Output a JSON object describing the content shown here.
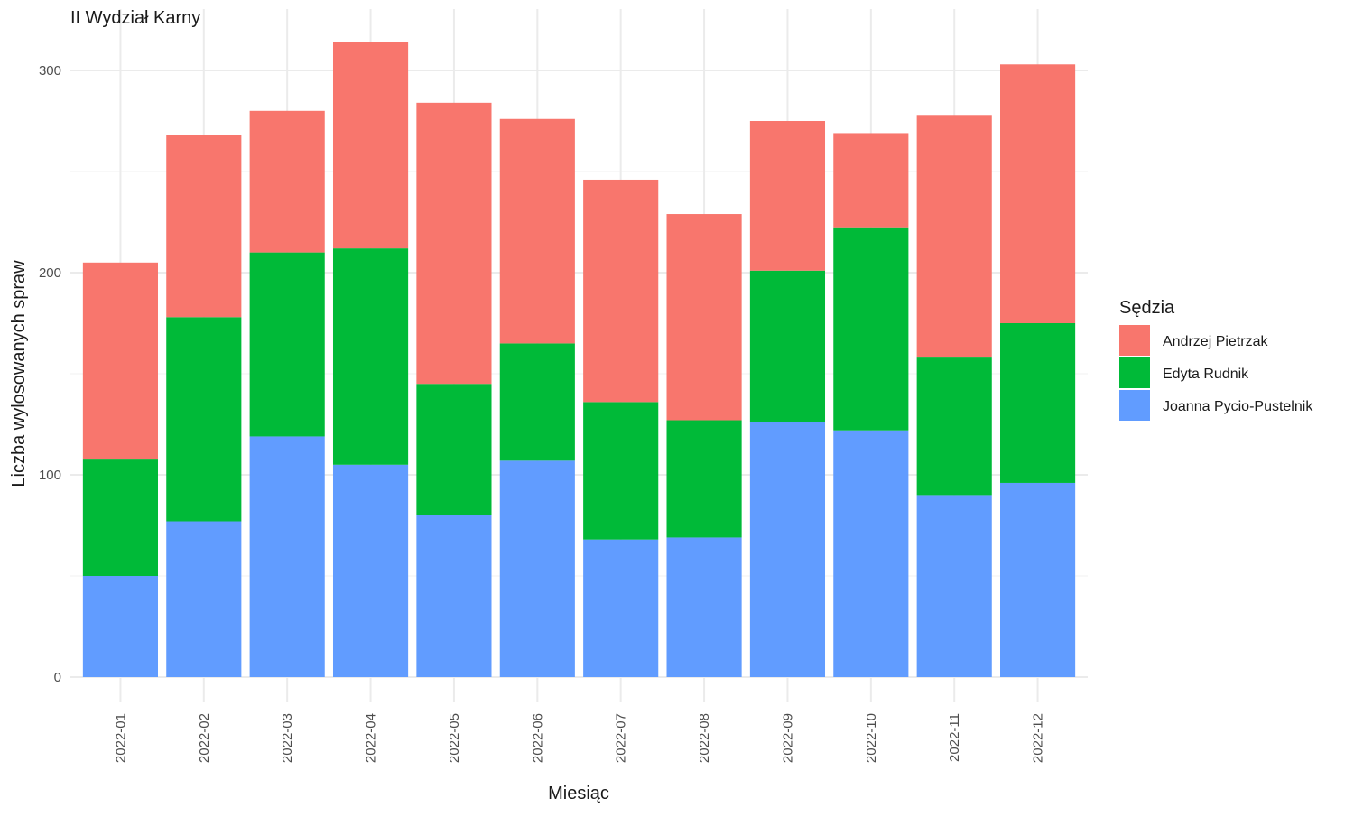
{
  "chart_data": {
    "type": "bar",
    "stacked": true,
    "title": "II Wydział Karny",
    "xlabel": "Miesiąc",
    "ylabel": "Liczba wylosowanych spraw",
    "ylim": [
      0,
      320
    ],
    "yticks": [
      0,
      100,
      200,
      300
    ],
    "grid": true,
    "legend_position": "right",
    "legend_title": "Sędzia",
    "categories": [
      "2022-01",
      "2022-02",
      "2022-03",
      "2022-04",
      "2022-05",
      "2022-06",
      "2022-07",
      "2022-08",
      "2022-09",
      "2022-10",
      "2022-11",
      "2022-12"
    ],
    "series": [
      {
        "name": "Joanna Pycio-Pustelnik",
        "color": "#619CFF",
        "values": [
          50,
          77,
          119,
          105,
          80,
          107,
          68,
          69,
          126,
          122,
          90,
          96
        ]
      },
      {
        "name": "Edyta Rudnik",
        "color": "#00BA38",
        "values": [
          58,
          101,
          91,
          107,
          65,
          58,
          68,
          58,
          75,
          100,
          68,
          79
        ]
      },
      {
        "name": "Andrzej Pietrzak",
        "color": "#F8766D",
        "values": [
          97,
          90,
          70,
          102,
          139,
          111,
          110,
          102,
          74,
          47,
          120,
          128
        ]
      }
    ],
    "legend_order": [
      "Andrzej Pietrzak",
      "Edyta Rudnik",
      "Joanna Pycio-Pustelnik"
    ]
  }
}
